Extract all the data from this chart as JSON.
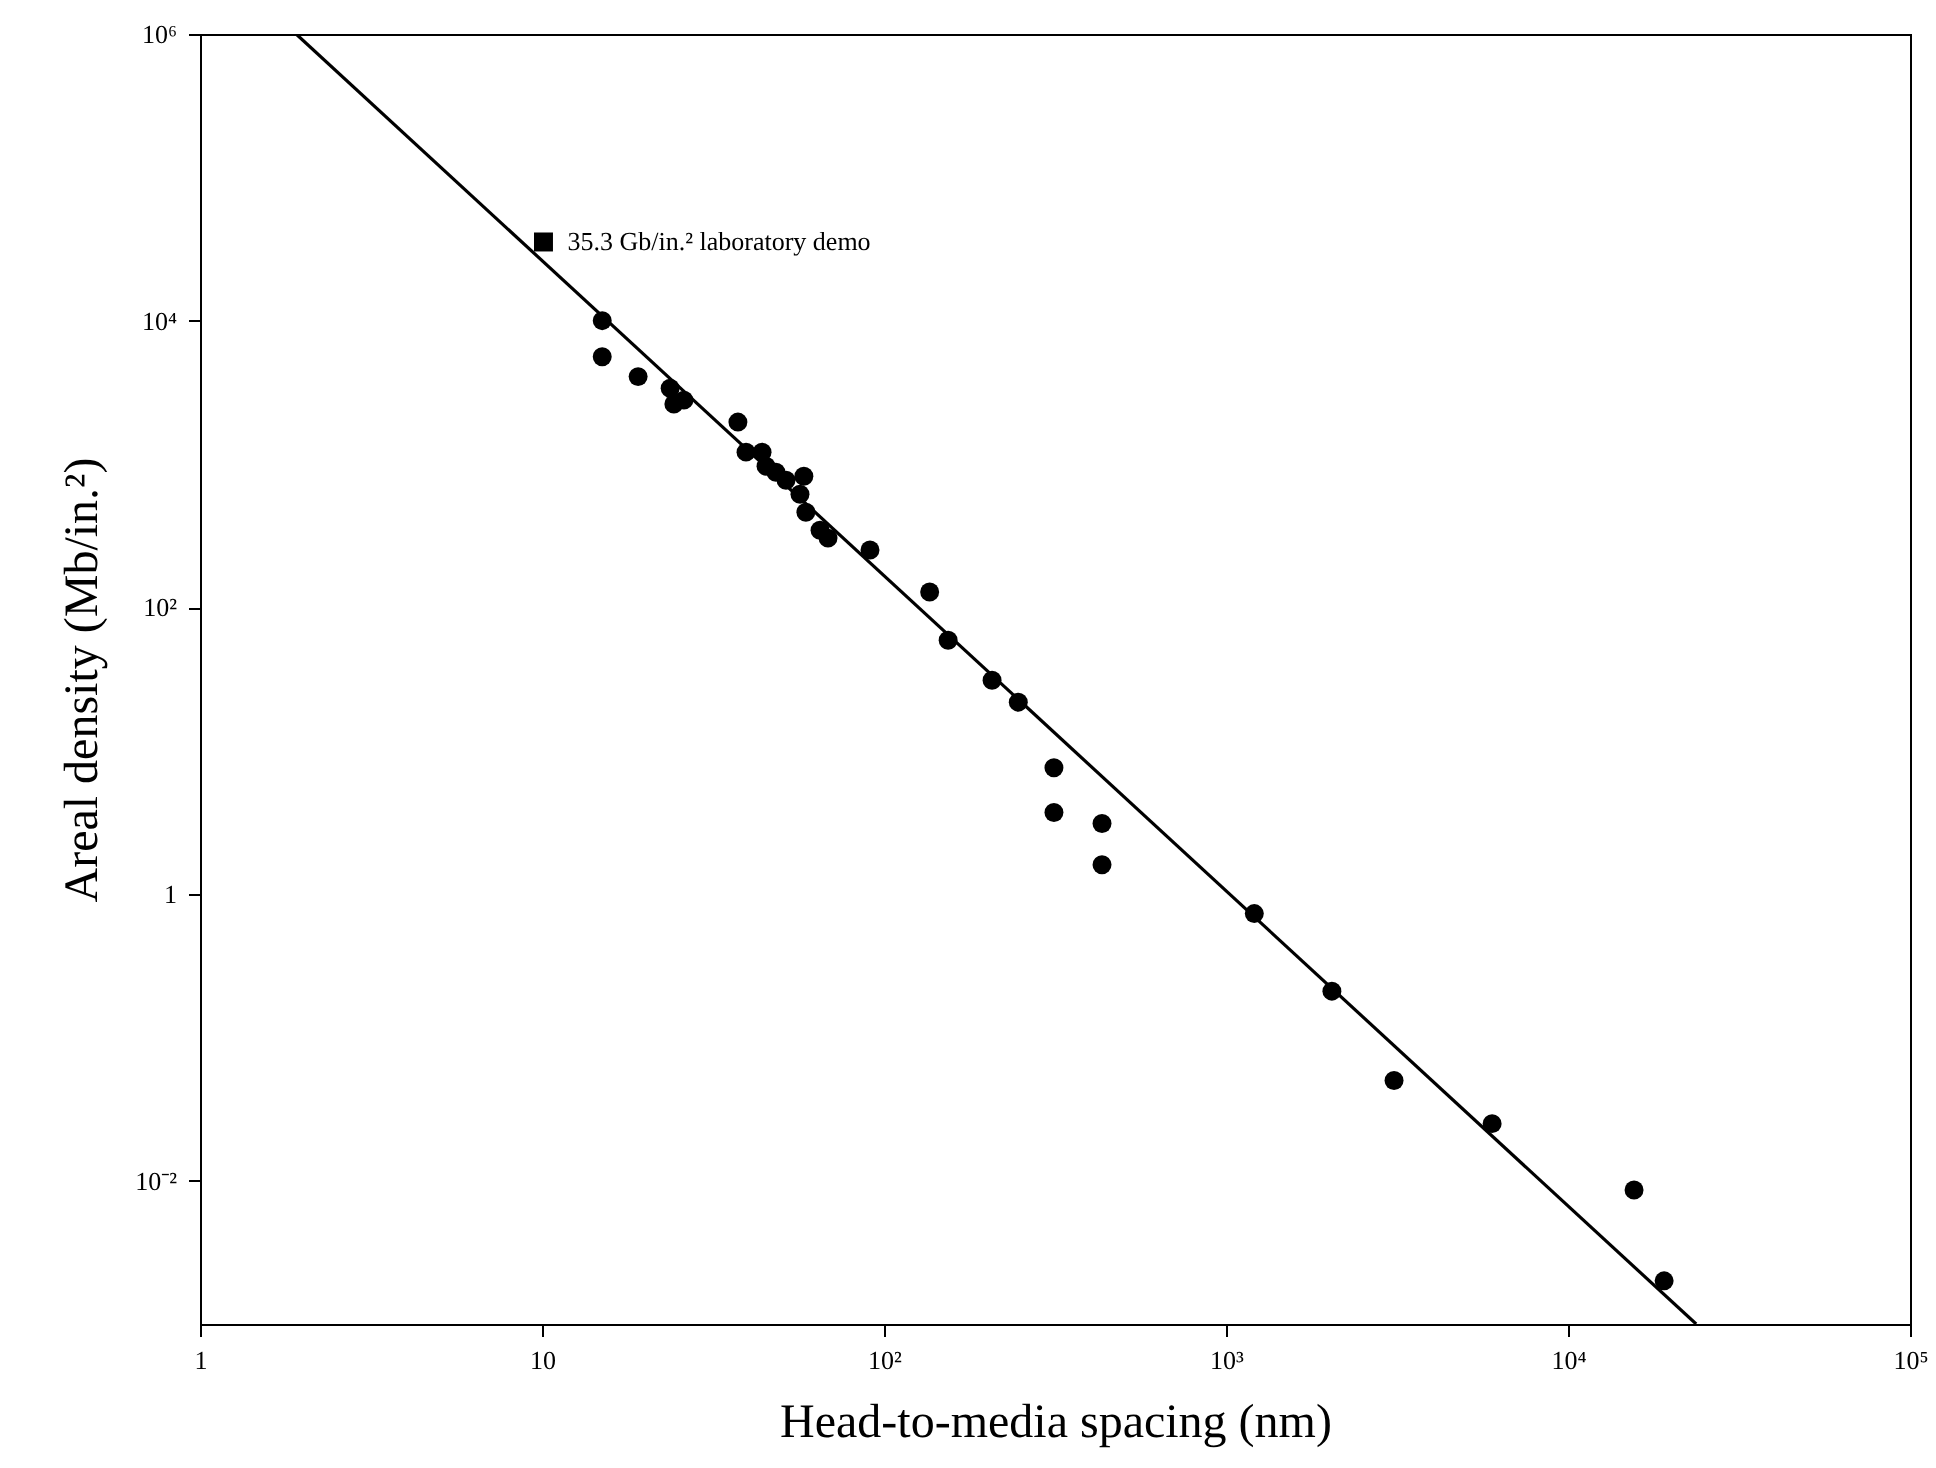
{
  "chart_data": {
    "type": "scatter",
    "xlabel": "Head-to-media spacing (nm)",
    "ylabel": "Areal density (Mb/in.²)",
    "log": "xy",
    "xlim": [
      1,
      100000
    ],
    "xticks": [
      1,
      10,
      {
        "value": 100,
        "label": "10²"
      },
      {
        "value": 1000,
        "label": "10³"
      },
      {
        "value": 10000,
        "label": "10⁴"
      },
      {
        "value": 100000,
        "label": "10⁵"
      }
    ],
    "ylim": [
      0.001,
      1000000
    ],
    "yticks": [
      {
        "value": 0.01,
        "label": "10⁻²"
      },
      1,
      {
        "value": 100,
        "label": "10²"
      },
      {
        "value": 10000,
        "label": "10⁴"
      },
      {
        "value": 1000000,
        "label": "10⁶"
      }
    ],
    "series": [
      {
        "marker": "circle",
        "color": "#000000",
        "x": [
          15,
          15,
          19.1,
          23.7,
          24.3,
          26,
          37.4,
          39.5,
          44,
          45.2,
          48.3,
          51.7,
          56.8,
          58.3,
          59.1,
          65,
          68.6,
          91,
          136,
          154,
          207,
          247,
          314,
          314,
          434,
          434,
          1210,
          2040,
          3100,
          6000,
          15600,
          19100
        ],
        "values": [
          10000,
          5600,
          4070,
          3380,
          2620,
          2790,
          1960,
          1210,
          1210,
          966,
          877,
          771,
          615,
          822,
          461,
          345,
          304,
          251,
          128,
          59,
          31,
          21.8,
          7.6,
          3.7,
          3.1,
          1.6,
          0.73,
          0.21,
          0.05,
          0.025,
          0.0086,
          0.002
        ]
      },
      {
        "marker": "square",
        "color": "#000000",
        "x": [
          10.1
        ],
        "values": [
          35400
        ]
      },
      {
        "type": "line",
        "color": "#000000",
        "x": [
          1.91,
          23700
        ],
        "values": [
          1000000,
          0.001
        ]
      }
    ],
    "annotations": [
      {
        "text": "35.3 Gb/in.² laboratory demo",
        "x": 10.1,
        "y": 35400
      }
    ]
  }
}
